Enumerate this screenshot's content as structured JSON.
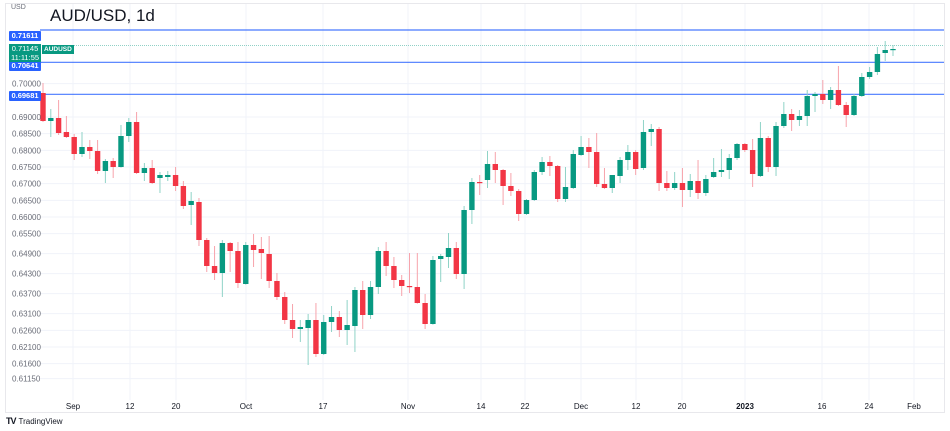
{
  "header": {
    "title": "AUD/USD, 1d",
    "unit": "USD"
  },
  "price_lines": [
    {
      "label": "0.71611",
      "value": 0.71611,
      "color": "#2962ff"
    },
    {
      "label": "0.70641",
      "value": 0.70641,
      "color": "#2962ff"
    },
    {
      "label": "0.69681",
      "value": 0.69681,
      "color": "#2962ff"
    }
  ],
  "current": {
    "price": "0.71145",
    "value": 0.71145,
    "countdown": "11:11:55",
    "symbol": "AUDUSD",
    "color": "#089981"
  },
  "colors": {
    "up": "#089981",
    "down": "#f23645",
    "up_wick": "#8fd3c7",
    "down_wick": "#f7a3ab",
    "grid": "#f0f3fa"
  },
  "chart_data": {
    "type": "candlestick",
    "title": "AUD/USD, 1d",
    "ylabel": "USD",
    "y_ticks": [
      "0.70000",
      "0.69000",
      "0.68500",
      "0.68000",
      "0.67500",
      "0.67000",
      "0.66500",
      "0.66000",
      "0.65500",
      "0.64900",
      "0.64300",
      "0.63700",
      "0.63100",
      "0.62600",
      "0.62100",
      "0.61600",
      "0.61150"
    ],
    "x_ticks": [
      "Sep",
      "12",
      "20",
      "Oct",
      "17",
      "Nov",
      "14",
      "22",
      "Dec",
      "12",
      "20",
      "2023",
      "16",
      "24",
      "Feb"
    ],
    "ohlc": [
      [
        0.6972,
        0.7002,
        0.6885,
        0.6888
      ],
      [
        0.6888,
        0.6924,
        0.684,
        0.6897
      ],
      [
        0.6897,
        0.6951,
        0.6846,
        0.6852
      ],
      [
        0.6855,
        0.6903,
        0.6837,
        0.684
      ],
      [
        0.684,
        0.6849,
        0.6771,
        0.6789
      ],
      [
        0.6789,
        0.6855,
        0.678,
        0.681
      ],
      [
        0.681,
        0.6831,
        0.6774,
        0.6798
      ],
      [
        0.6798,
        0.6831,
        0.6729,
        0.6738
      ],
      [
        0.6738,
        0.6774,
        0.6702,
        0.6768
      ],
      [
        0.6768,
        0.6777,
        0.6717,
        0.675
      ],
      [
        0.675,
        0.6876,
        0.6748,
        0.6843
      ],
      [
        0.6843,
        0.6897,
        0.6825,
        0.6885
      ],
      [
        0.6885,
        0.6915,
        0.6729,
        0.6732
      ],
      [
        0.6732,
        0.6762,
        0.6708,
        0.6747
      ],
      [
        0.6747,
        0.6771,
        0.6699,
        0.6702
      ],
      [
        0.6717,
        0.6735,
        0.6672,
        0.6726
      ],
      [
        0.672,
        0.6738,
        0.6708,
        0.6726
      ],
      [
        0.6726,
        0.675,
        0.6678,
        0.6693
      ],
      [
        0.6693,
        0.6708,
        0.6624,
        0.6633
      ],
      [
        0.6636,
        0.6675,
        0.6576,
        0.6648
      ],
      [
        0.6645,
        0.6657,
        0.6513,
        0.6531
      ],
      [
        0.6531,
        0.6537,
        0.6435,
        0.6453
      ],
      [
        0.6453,
        0.6513,
        0.6411,
        0.6432
      ],
      [
        0.6432,
        0.6531,
        0.636,
        0.6522
      ],
      [
        0.6522,
        0.6525,
        0.6435,
        0.6498
      ],
      [
        0.6498,
        0.6525,
        0.6387,
        0.6402
      ],
      [
        0.6399,
        0.6525,
        0.6397,
        0.6516
      ],
      [
        0.6516,
        0.6549,
        0.645,
        0.6501
      ],
      [
        0.6504,
        0.654,
        0.6414,
        0.6492
      ],
      [
        0.6489,
        0.6543,
        0.6387,
        0.6408
      ],
      [
        0.6408,
        0.6432,
        0.6351,
        0.636
      ],
      [
        0.636,
        0.6375,
        0.6279,
        0.6291
      ],
      [
        0.6291,
        0.6339,
        0.6237,
        0.6264
      ],
      [
        0.6264,
        0.6291,
        0.6225,
        0.627
      ],
      [
        0.6267,
        0.6309,
        0.6156,
        0.6291
      ],
      [
        0.6291,
        0.6342,
        0.618,
        0.6189
      ],
      [
        0.6189,
        0.6306,
        0.6186,
        0.6285
      ],
      [
        0.6285,
        0.6333,
        0.6255,
        0.63
      ],
      [
        0.63,
        0.6318,
        0.624,
        0.6261
      ],
      [
        0.6261,
        0.6351,
        0.6216,
        0.6276
      ],
      [
        0.6273,
        0.639,
        0.6195,
        0.6381
      ],
      [
        0.6381,
        0.6408,
        0.6264,
        0.6306
      ],
      [
        0.6306,
        0.6408,
        0.6294,
        0.639
      ],
      [
        0.639,
        0.651,
        0.6369,
        0.6498
      ],
      [
        0.6498,
        0.6525,
        0.6423,
        0.6453
      ],
      [
        0.6453,
        0.648,
        0.6387,
        0.6411
      ],
      [
        0.6411,
        0.6426,
        0.6363,
        0.6393
      ],
      [
        0.6393,
        0.6492,
        0.6372,
        0.639
      ],
      [
        0.639,
        0.6492,
        0.634,
        0.6342
      ],
      [
        0.6342,
        0.6369,
        0.6264,
        0.6279
      ],
      [
        0.6279,
        0.6483,
        0.6277,
        0.6471
      ],
      [
        0.6474,
        0.6489,
        0.6405,
        0.6483
      ],
      [
        0.648,
        0.6552,
        0.6447,
        0.6507
      ],
      [
        0.6507,
        0.6525,
        0.6414,
        0.6429
      ],
      [
        0.6429,
        0.6633,
        0.6384,
        0.6621
      ],
      [
        0.6621,
        0.6717,
        0.6579,
        0.6705
      ],
      [
        0.6705,
        0.6726,
        0.6666,
        0.6702
      ],
      [
        0.6711,
        0.6798,
        0.6687,
        0.6759
      ],
      [
        0.6759,
        0.6795,
        0.6702,
        0.6741
      ],
      [
        0.6741,
        0.6744,
        0.6636,
        0.6693
      ],
      [
        0.6693,
        0.6732,
        0.6663,
        0.6678
      ],
      [
        0.6678,
        0.6684,
        0.6588,
        0.6609
      ],
      [
        0.6609,
        0.6654,
        0.6606,
        0.6651
      ],
      [
        0.6651,
        0.6741,
        0.6648,
        0.6735
      ],
      [
        0.6735,
        0.678,
        0.6726,
        0.6765
      ],
      [
        0.6765,
        0.6783,
        0.6723,
        0.6753
      ],
      [
        0.6753,
        0.6756,
        0.6645,
        0.6654
      ],
      [
        0.6654,
        0.675,
        0.6645,
        0.669
      ],
      [
        0.6687,
        0.6801,
        0.6684,
        0.6789
      ],
      [
        0.6786,
        0.6843,
        0.6783,
        0.681
      ],
      [
        0.681,
        0.6837,
        0.6747,
        0.6795
      ],
      [
        0.6795,
        0.6852,
        0.669,
        0.6699
      ],
      [
        0.6699,
        0.6747,
        0.6684,
        0.6687
      ],
      [
        0.6687,
        0.6723,
        0.6672,
        0.6726
      ],
      [
        0.6723,
        0.678,
        0.6702,
        0.6771
      ],
      [
        0.6771,
        0.6816,
        0.6741,
        0.6795
      ],
      [
        0.6795,
        0.6801,
        0.6726,
        0.6744
      ],
      [
        0.6747,
        0.6891,
        0.6741,
        0.6855
      ],
      [
        0.6855,
        0.6879,
        0.6813,
        0.6864
      ],
      [
        0.6864,
        0.687,
        0.6678,
        0.6702
      ],
      [
        0.6702,
        0.6738,
        0.6678,
        0.6687
      ],
      [
        0.6687,
        0.6735,
        0.6681,
        0.6702
      ],
      [
        0.6702,
        0.6747,
        0.663,
        0.6681
      ],
      [
        0.6681,
        0.6729,
        0.666,
        0.6708
      ],
      [
        0.6708,
        0.6771,
        0.6654,
        0.6672
      ],
      [
        0.6672,
        0.6726,
        0.6663,
        0.6714
      ],
      [
        0.672,
        0.6777,
        0.6717,
        0.6735
      ],
      [
        0.6735,
        0.6804,
        0.672,
        0.6741
      ],
      [
        0.6741,
        0.6789,
        0.6714,
        0.6777
      ],
      [
        0.6777,
        0.6822,
        0.6771,
        0.6819
      ],
      [
        0.6819,
        0.6822,
        0.6795,
        0.6801
      ],
      [
        0.6801,
        0.6834,
        0.669,
        0.6729
      ],
      [
        0.6723,
        0.6885,
        0.672,
        0.6837
      ],
      [
        0.6837,
        0.6843,
        0.6735,
        0.675
      ],
      [
        0.675,
        0.6885,
        0.6723,
        0.6873
      ],
      [
        0.6873,
        0.6945,
        0.6867,
        0.6909
      ],
      [
        0.6909,
        0.6924,
        0.6858,
        0.6891
      ],
      [
        0.6891,
        0.6921,
        0.6873,
        0.6903
      ],
      [
        0.6903,
        0.6981,
        0.6873,
        0.6963
      ],
      [
        0.6963,
        0.6975,
        0.6915,
        0.6969
      ],
      [
        0.6969,
        0.7011,
        0.6939,
        0.6951
      ],
      [
        0.6951,
        0.699,
        0.6924,
        0.6981
      ],
      [
        0.6981,
        0.7053,
        0.6933,
        0.6936
      ],
      [
        0.6936,
        0.6945,
        0.687,
        0.6906
      ],
      [
        0.6906,
        0.6969,
        0.6903,
        0.6963
      ],
      [
        0.6963,
        0.7032,
        0.696,
        0.702
      ],
      [
        0.702,
        0.705,
        0.7014,
        0.7035
      ],
      [
        0.7035,
        0.711,
        0.7026,
        0.7089
      ],
      [
        0.7092,
        0.7128,
        0.7068,
        0.7101
      ],
      [
        0.7101,
        0.7116,
        0.7083,
        0.7104
      ]
    ]
  },
  "footer": {
    "brand": "TradingView",
    "logo_mark": "TV"
  }
}
